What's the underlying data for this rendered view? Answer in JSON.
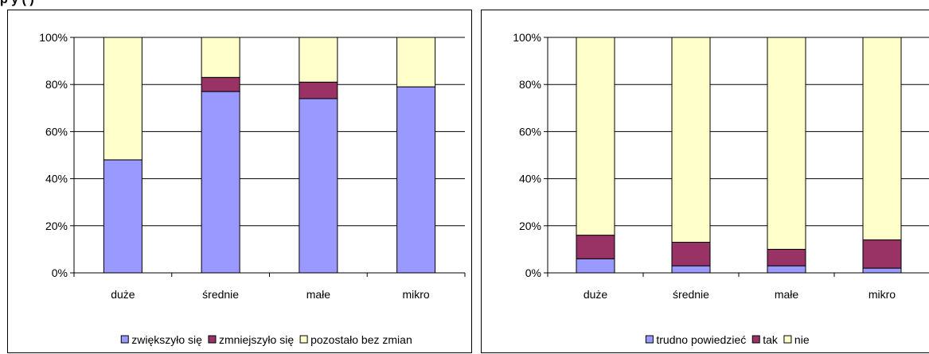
{
  "header": {
    "fragment": "p y                      (       )"
  },
  "chart_data": [
    {
      "type": "bar",
      "stacked": true,
      "percent": true,
      "categories": [
        "duże",
        "średnie",
        "małe",
        "mikro"
      ],
      "yticks": [
        "0%",
        "20%",
        "40%",
        "60%",
        "80%",
        "100%"
      ],
      "ylim": [
        0,
        100
      ],
      "grid": true,
      "legend_position": "bottom",
      "series": [
        {
          "name": "zwiększyło się",
          "color": "#9999ff",
          "values": [
            48,
            77,
            74,
            79
          ]
        },
        {
          "name": "zmniejszyło się",
          "color": "#993366",
          "values": [
            0,
            6,
            7,
            0
          ]
        },
        {
          "name": "pozostało bez zmian",
          "color": "#ffffcc",
          "values": [
            52,
            17,
            19,
            21
          ]
        }
      ]
    },
    {
      "type": "bar",
      "stacked": true,
      "percent": true,
      "categories": [
        "duże",
        "średnie",
        "małe",
        "mikro"
      ],
      "yticks": [
        "0%",
        "20%",
        "40%",
        "60%",
        "80%",
        "100%"
      ],
      "ylim": [
        0,
        100
      ],
      "grid": true,
      "legend_position": "bottom",
      "series": [
        {
          "name": "trudno powiedzieć",
          "color": "#9999ff",
          "values": [
            6,
            3,
            3,
            2
          ]
        },
        {
          "name": "tak",
          "color": "#993366",
          "values": [
            10,
            10,
            7,
            12
          ]
        },
        {
          "name": "nie",
          "color": "#ffffcc",
          "values": [
            84,
            87,
            90,
            86
          ]
        }
      ]
    }
  ]
}
